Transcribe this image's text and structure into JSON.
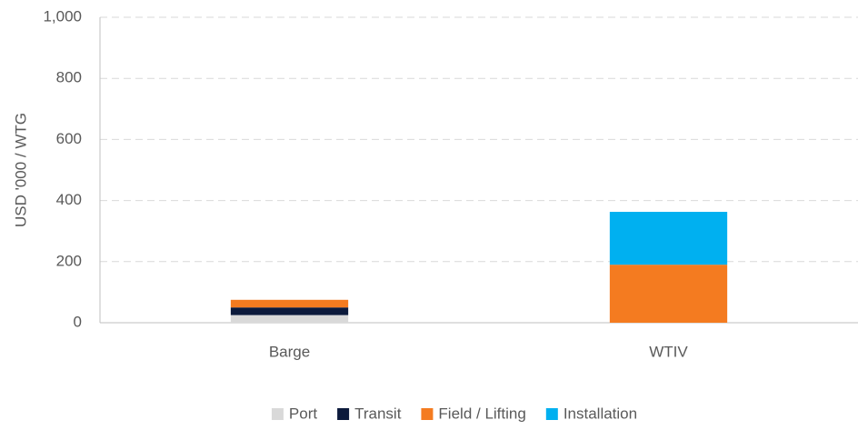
{
  "chart_data": {
    "type": "stacked_bar",
    "y_label": "USD '000 / WTG",
    "categories": [
      "Barge",
      "WTIV"
    ],
    "series": [
      {
        "name": "Port",
        "color": "#d9d9d9",
        "values": [
          25,
          0
        ]
      },
      {
        "name": "Transit",
        "color": "#0c1a3c",
        "values": [
          25,
          0
        ]
      },
      {
        "name": "Field / Lifting",
        "color": "#f47b20",
        "values": [
          25,
          190
        ]
      },
      {
        "name": "Installation",
        "color": "#00b0f0",
        "values": [
          0,
          173
        ]
      }
    ],
    "ylim": [
      0,
      1000
    ],
    "yticks": [
      0,
      200,
      400,
      600,
      800,
      {
        "value": 1000,
        "label": "1,000"
      }
    ],
    "grid": true,
    "legend": "bottom"
  }
}
